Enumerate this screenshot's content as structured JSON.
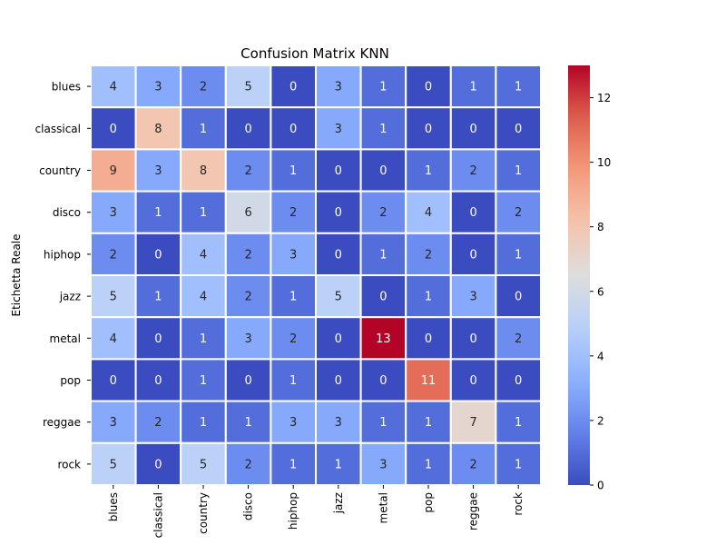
{
  "chart_data": {
    "type": "heatmap",
    "title": "Confusion Matrix KNN",
    "ylabel": "Etichetta Reale",
    "xlabel": "",
    "rows": [
      "blues",
      "classical",
      "country",
      "disco",
      "hiphop",
      "jazz",
      "metal",
      "pop",
      "reggae",
      "rock"
    ],
    "columns": [
      "blues",
      "classical",
      "country",
      "disco",
      "hiphop",
      "jazz",
      "metal",
      "pop",
      "reggae",
      "rock"
    ],
    "values": [
      [
        4,
        3,
        2,
        5,
        0,
        3,
        1,
        0,
        1,
        1
      ],
      [
        0,
        8,
        1,
        0,
        0,
        3,
        1,
        0,
        0,
        0
      ],
      [
        9,
        3,
        8,
        2,
        1,
        0,
        0,
        1,
        2,
        1
      ],
      [
        3,
        1,
        1,
        6,
        2,
        0,
        2,
        4,
        0,
        2
      ],
      [
        2,
        0,
        4,
        2,
        3,
        0,
        1,
        2,
        0,
        1
      ],
      [
        5,
        1,
        4,
        2,
        1,
        5,
        0,
        1,
        3,
        0
      ],
      [
        4,
        0,
        1,
        3,
        2,
        0,
        13,
        0,
        0,
        2
      ],
      [
        0,
        0,
        1,
        0,
        1,
        0,
        0,
        11,
        0,
        0
      ],
      [
        3,
        2,
        1,
        1,
        3,
        3,
        1,
        1,
        7,
        1
      ],
      [
        5,
        0,
        5,
        2,
        1,
        1,
        3,
        1,
        2,
        1
      ]
    ],
    "colormap": "coolwarm",
    "vmin": 0,
    "vmax": 13,
    "colorbar_ticks": [
      0,
      2,
      4,
      6,
      8,
      10,
      12
    ],
    "annotations": true,
    "grid": false,
    "legend": "colorbar-right"
  }
}
